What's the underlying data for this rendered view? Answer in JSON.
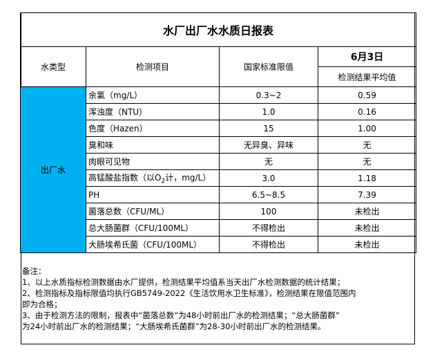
{
  "title": "水厂出厂水水质日报表",
  "headers": {
    "water_type": "水类型",
    "item": "检测项目",
    "standard": "国家标准限值",
    "date": "6月3日",
    "result": "检测结果平均值"
  },
  "water_type": "出厂水",
  "rows": [
    {
      "item": "余氯（mg/L）",
      "standard": "0.3~2",
      "result": "0.59"
    },
    {
      "item": "浑浊度（NTU）",
      "standard": "1.0",
      "result": "0.16"
    },
    {
      "item": "色度（Hazen）",
      "standard": "15",
      "result": "1.00"
    },
    {
      "item": "臭和味",
      "standard": "无异臭、异味",
      "result": "无"
    },
    {
      "item": "肉眼可见物",
      "standard": "无",
      "result": "无"
    },
    {
      "item_pre": "高锰酸盐指数（以O",
      "item_sub": "2",
      "item_post": "计，mg/L）",
      "standard": "3.0",
      "result": "1.18"
    },
    {
      "item": "PH",
      "standard": "6.5~8.5",
      "result": "7.39"
    },
    {
      "item": "菌落总数（CFU/ML）",
      "standard": "100",
      "result": "未检出"
    },
    {
      "item": "总大肠菌群（CFU/100ML）",
      "standard": "不得检出",
      "result": "未检出"
    },
    {
      "item": "大肠埃希氏菌（CFU/100ML）",
      "standard": "不得检出",
      "result": "未检出"
    }
  ],
  "notes": [
    "备注：",
    "1、以上水质指标检测数据由水厂提供，检测结果平均值系当天出厂水检测数据的统计结果；",
    "2、检测指标及指标限值均执行GB5749-2022《生活饮用水卫生标准》，检测结果在限值范围内",
    "即为合格；",
    "3、由于检测方法的限制，报表中“菌落总数”为48小时前出厂水的检测结果；“总大肠菌群”",
    "为24小时前出厂水的检测结果；“大肠埃希氏菌群”为28-30小时前出厂水的检测结果。"
  ],
  "colors": {
    "water_type_bg": "#00B0F0"
  }
}
